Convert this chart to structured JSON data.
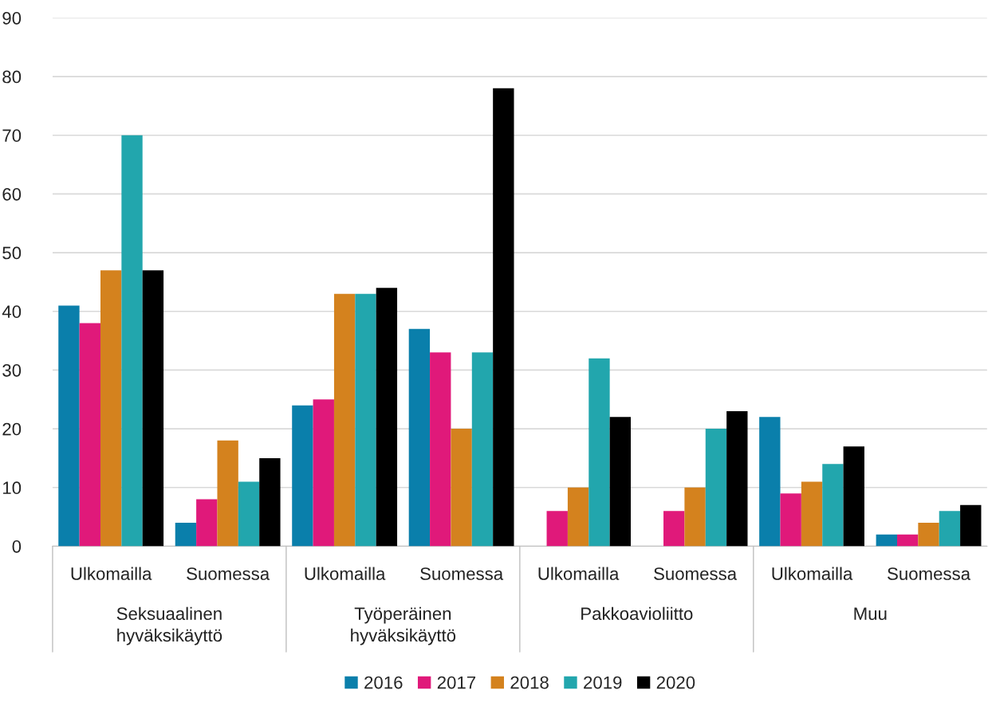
{
  "chart_data": {
    "type": "bar",
    "categories": [
      "Ulkomailla",
      "Suomessa",
      "Ulkomailla",
      "Suomessa",
      "Ulkomailla",
      "Suomessa",
      "Ulkomailla",
      "Suomessa"
    ],
    "annotations": [
      "Seksuaalinen\nhyväksikäyttö",
      "Työperäinen\nhyväksikäyttö",
      "Pakkoavioliitto",
      "Muu"
    ],
    "series": [
      {
        "name": "2016",
        "color": "#0a7fab",
        "values": [
          41,
          4,
          24,
          37,
          null,
          null,
          22,
          2
        ]
      },
      {
        "name": "2017",
        "color": "#e0197a",
        "values": [
          38,
          8,
          25,
          33,
          6,
          6,
          9,
          2
        ]
      },
      {
        "name": "2018",
        "color": "#d4821e",
        "values": [
          47,
          18,
          43,
          20,
          10,
          10,
          11,
          4
        ]
      },
      {
        "name": "2019",
        "color": "#22a6ad",
        "values": [
          70,
          11,
          43,
          33,
          32,
          20,
          14,
          6
        ]
      },
      {
        "name": "2020",
        "color": "#000000",
        "values": [
          47,
          15,
          44,
          78,
          22,
          23,
          17,
          7
        ]
      }
    ],
    "ylim": [
      0,
      90
    ],
    "yticks": [
      0,
      10,
      20,
      30,
      40,
      50,
      60,
      70,
      80,
      90
    ],
    "grid": "y",
    "legend": "bottom"
  }
}
